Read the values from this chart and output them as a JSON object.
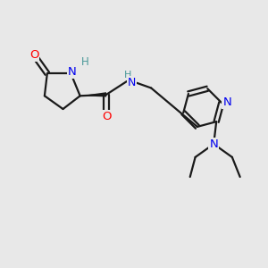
{
  "bg_color": "#e8e8e8",
  "atom_colors": {
    "O": "#ff0000",
    "N": "#0000ee",
    "H": "#4a9999",
    "C": "#1a1a1a"
  },
  "bond_color": "#1a1a1a",
  "fig_size": [
    3.0,
    3.0
  ],
  "dpi": 100,
  "xlim": [
    0,
    10
  ],
  "ylim": [
    0,
    10
  ]
}
